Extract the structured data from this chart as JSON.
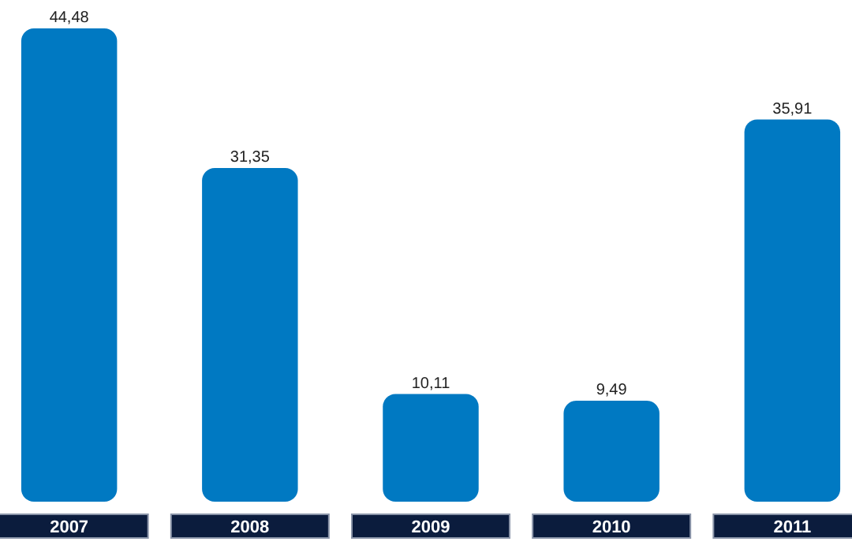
{
  "chart_data": {
    "type": "bar",
    "categories": [
      "2007",
      "2008",
      "2009",
      "2010",
      "2011"
    ],
    "values": [
      44.48,
      31.35,
      10.11,
      9.49,
      35.91
    ],
    "value_labels": [
      "44,48",
      "31,35",
      "10,11",
      "9,49",
      "35,91"
    ],
    "color": "#0079c2"
  }
}
